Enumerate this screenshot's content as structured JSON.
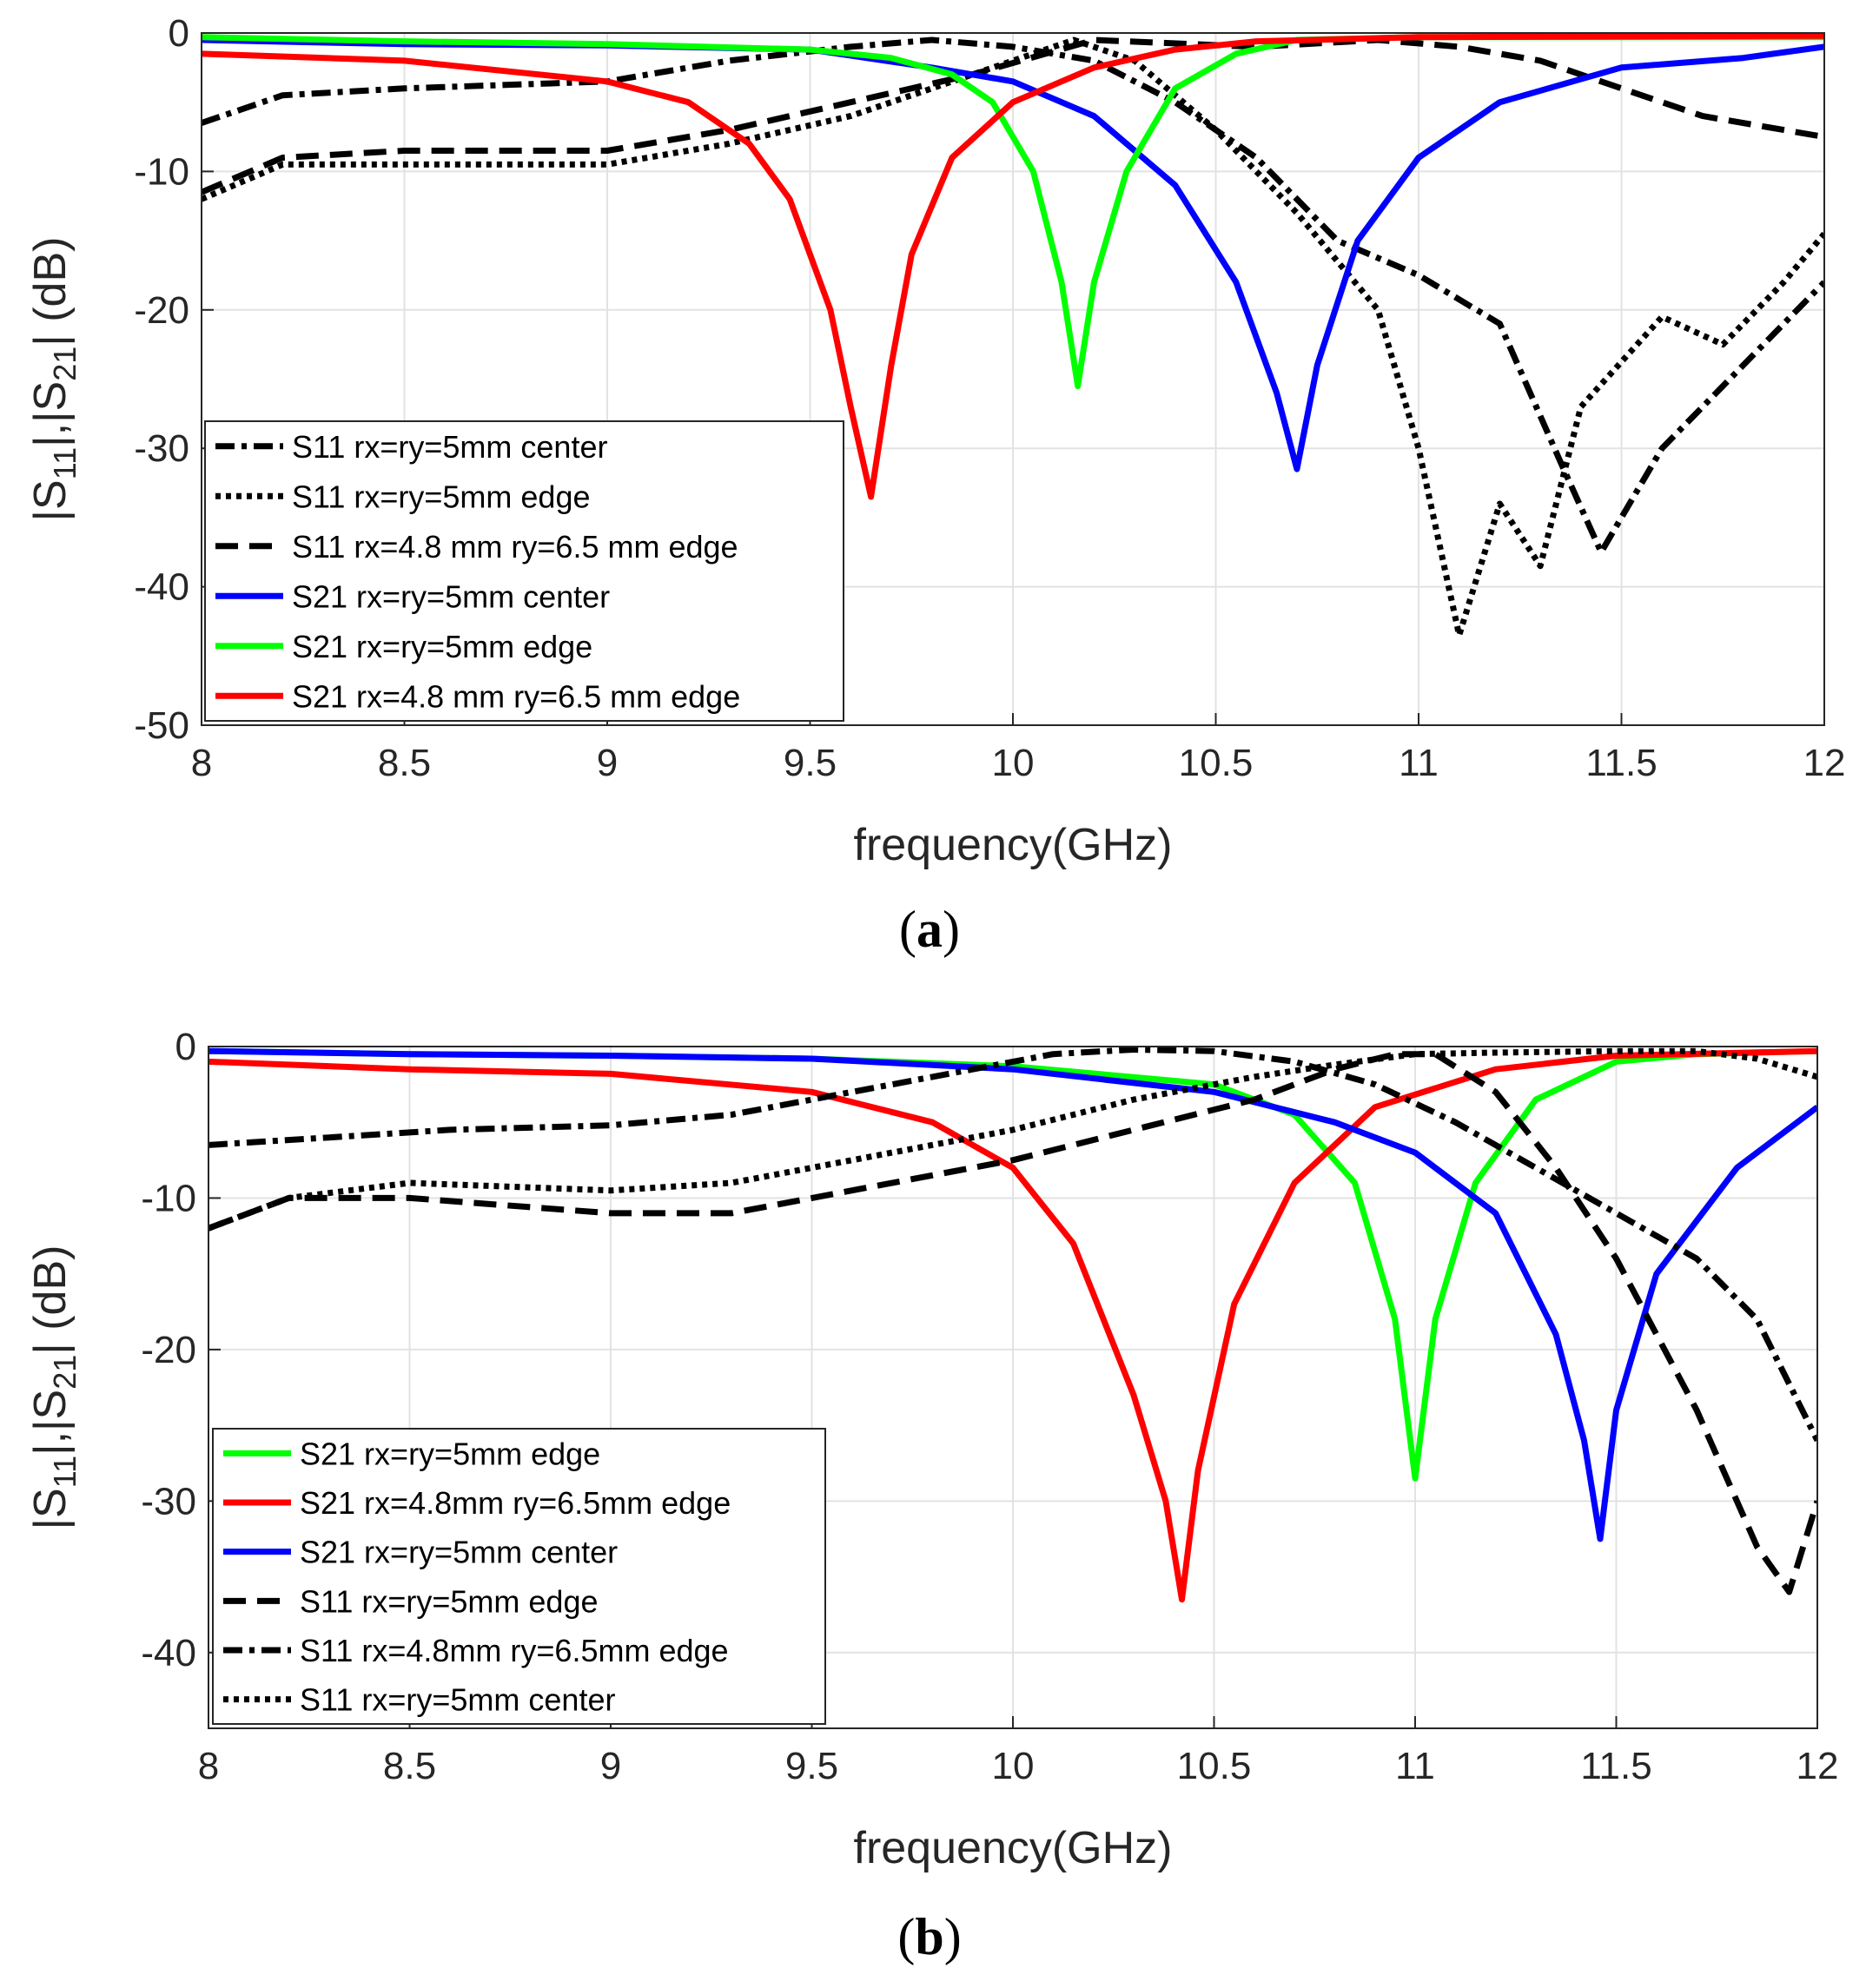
{
  "chart_data": [
    {
      "type": "line",
      "panel_label": "a",
      "title": "",
      "xlabel": "frequency(GHz)",
      "ylabel_parts": {
        "prefix": "|S",
        "sub1": "11",
        "mid": "|,|S",
        "sub2": "21",
        "suffix": "| (dB)"
      },
      "xlim": [
        8,
        12
      ],
      "ylim": [
        -50,
        0
      ],
      "xticks": [
        8,
        8.5,
        9,
        9.5,
        10,
        10.5,
        11,
        11.5,
        12
      ],
      "yticks": [
        0,
        -10,
        -20,
        -30,
        -40,
        -50
      ],
      "xtick_labels": [
        "8",
        "8.5",
        "9",
        "9.5",
        "10",
        "10.5",
        "11",
        "11.5",
        "12"
      ],
      "ytick_labels": [
        "0",
        "-10",
        "-20",
        "-30",
        "-40",
        "-50"
      ],
      "grid": true,
      "legend_position": "lower-left",
      "series": [
        {
          "name": "S11 rx=ry=5mm center",
          "color": "#000000",
          "style": "dashdot",
          "x": [
            8,
            8.2,
            8.5,
            9,
            9.3,
            9.6,
            9.8,
            10,
            10.2,
            10.4,
            10.6,
            10.8,
            11,
            11.2,
            11.35,
            11.45,
            11.6,
            11.8,
            12
          ],
          "y": [
            -6.5,
            -4.5,
            -4,
            -3.5,
            -2,
            -1,
            -0.5,
            -1,
            -2,
            -5,
            -9,
            -15,
            -17.5,
            -21,
            -31,
            -37.5,
            -30,
            -24,
            -18
          ]
        },
        {
          "name": "S11 rx=ry=5mm edge",
          "color": "#000000",
          "style": "dotted",
          "x": [
            8,
            8.2,
            8.5,
            9,
            9.3,
            9.6,
            9.8,
            10,
            10.15,
            10.3,
            10.5,
            10.7,
            10.9,
            11,
            11.1,
            11.2,
            11.3,
            11.4,
            11.6,
            11.75,
            11.9,
            12
          ],
          "y": [
            -12,
            -9.5,
            -9.5,
            -9.5,
            -8,
            -6,
            -4,
            -2,
            -0.5,
            -2,
            -7,
            -13,
            -20,
            -30,
            -43.5,
            -34,
            -38.5,
            -27,
            -20.5,
            -22.5,
            -18,
            -14.5
          ]
        },
        {
          "name": "S11 rx=4.8 mm ry=6.5 mm edge",
          "color": "#000000",
          "style": "dashed",
          "x": [
            8,
            8.2,
            8.5,
            9,
            9.3,
            9.6,
            9.9,
            10.2,
            10.6,
            10.9,
            11.1,
            11.3,
            11.5,
            11.7,
            11.9,
            12
          ],
          "y": [
            -11.5,
            -9,
            -8.5,
            -8.5,
            -7,
            -5,
            -3,
            -0.5,
            -1,
            -0.5,
            -1,
            -2,
            -4,
            -6,
            -7,
            -7.5
          ]
        },
        {
          "name": "S21 rx=ry=5mm center",
          "color": "#0000ff",
          "style": "solid",
          "x": [
            8,
            8.5,
            9,
            9.5,
            9.8,
            10,
            10.2,
            10.4,
            10.55,
            10.65,
            10.7,
            10.75,
            10.85,
            11,
            11.2,
            11.5,
            11.8,
            12
          ],
          "y": [
            -0.5,
            -0.8,
            -0.9,
            -1.2,
            -2.5,
            -3.5,
            -6,
            -11,
            -18,
            -26,
            -31.5,
            -24,
            -15,
            -9,
            -5,
            -2.5,
            -1.8,
            -1
          ]
        },
        {
          "name": "S21 rx=ry=5mm edge",
          "color": "#00ff00",
          "style": "solid",
          "x": [
            8,
            8.5,
            9,
            9.5,
            9.7,
            9.85,
            9.95,
            10.05,
            10.12,
            10.16,
            10.2,
            10.28,
            10.4,
            10.55,
            10.7,
            11,
            12
          ],
          "y": [
            -0.3,
            -0.6,
            -0.8,
            -1.2,
            -1.8,
            -3,
            -5,
            -10,
            -18,
            -25.5,
            -18,
            -10,
            -4,
            -1.5,
            -0.5,
            -0.3,
            -0.3
          ]
        },
        {
          "name": "S21 rx=4.8 mm ry=6.5 mm edge",
          "color": "#ff0000",
          "style": "solid",
          "x": [
            8,
            8.5,
            9,
            9.2,
            9.35,
            9.45,
            9.55,
            9.6,
            9.65,
            9.7,
            9.75,
            9.85,
            10,
            10.2,
            10.4,
            10.6,
            11,
            12
          ],
          "y": [
            -1.5,
            -2,
            -3.5,
            -5,
            -8,
            -12,
            -20,
            -27,
            -33.5,
            -24,
            -16,
            -9,
            -5,
            -2.5,
            -1.2,
            -0.6,
            -0.3,
            -0.2
          ]
        }
      ]
    },
    {
      "type": "line",
      "panel_label": "b",
      "title": "",
      "xlabel": "frequency(GHz)",
      "ylabel_parts": {
        "prefix": "|S",
        "sub1": "11",
        "mid": "|,|S",
        "sub2": "21",
        "suffix": "| (dB)"
      },
      "xlim": [
        8,
        12
      ],
      "ylim": [
        -45,
        0
      ],
      "xticks": [
        8,
        8.5,
        9,
        9.5,
        10,
        10.5,
        11,
        11.5,
        12
      ],
      "yticks": [
        0,
        -10,
        -20,
        -30,
        -40
      ],
      "xtick_labels": [
        "8",
        "8.5",
        "9",
        "9.5",
        "10",
        "10.5",
        "11",
        "11.5",
        "12"
      ],
      "ytick_labels": [
        "0",
        "-10",
        "-20",
        "-30",
        "-40"
      ],
      "grid": true,
      "legend_position": "lower-left",
      "series": [
        {
          "name": "S21 rx=ry=5mm edge",
          "color": "#00ff00",
          "style": "solid",
          "x": [
            8,
            8.5,
            9,
            9.5,
            10,
            10.5,
            10.7,
            10.85,
            10.95,
            11,
            11.05,
            11.15,
            11.3,
            11.5,
            11.7,
            12
          ],
          "y": [
            -0.3,
            -0.5,
            -0.6,
            -0.8,
            -1.3,
            -2.5,
            -4.5,
            -9,
            -18,
            -28.5,
            -18,
            -9,
            -3.5,
            -1,
            -0.5,
            -0.3
          ]
        },
        {
          "name": "S21 rx=4.8mm ry=6.5mm edge",
          "color": "#ff0000",
          "style": "solid",
          "x": [
            8,
            8.5,
            9,
            9.5,
            9.8,
            10,
            10.15,
            10.3,
            10.38,
            10.42,
            10.46,
            10.55,
            10.7,
            10.9,
            11.2,
            11.5,
            12
          ],
          "y": [
            -1,
            -1.5,
            -1.8,
            -3,
            -5,
            -8,
            -13,
            -23,
            -30,
            -36.5,
            -28,
            -17,
            -9,
            -4,
            -1.5,
            -0.6,
            -0.3
          ]
        },
        {
          "name": "S21 rx=ry=5mm center",
          "color": "#0000ff",
          "style": "solid",
          "x": [
            8,
            8.5,
            9,
            9.5,
            10,
            10.5,
            10.8,
            11,
            11.2,
            11.35,
            11.42,
            11.46,
            11.5,
            11.6,
            11.8,
            12
          ],
          "y": [
            -0.3,
            -0.5,
            -0.6,
            -0.8,
            -1.5,
            -3,
            -5,
            -7,
            -11,
            -19,
            -26,
            -32.5,
            -24,
            -15,
            -8,
            -4
          ]
        },
        {
          "name": "S11 rx=ry=5mm edge",
          "color": "#000000",
          "style": "dashed",
          "x": [
            8,
            8.2,
            8.5,
            9,
            9.3,
            9.6,
            10,
            10.3,
            10.6,
            10.8,
            10.95,
            11.05,
            11.2,
            11.35,
            11.5,
            11.7,
            11.85,
            11.93,
            12
          ],
          "y": [
            -12,
            -10,
            -10,
            -11,
            -11,
            -9.5,
            -7.5,
            -5.5,
            -3.5,
            -1.5,
            -0.5,
            -0.5,
            -3,
            -8,
            -14,
            -24,
            -33,
            -36,
            -30
          ]
        },
        {
          "name": "S11 rx=4.8mm ry=6.5mm edge",
          "color": "#000000",
          "style": "dashdot",
          "x": [
            8,
            8.3,
            8.6,
            9,
            9.3,
            9.6,
            9.9,
            10.1,
            10.3,
            10.5,
            10.7,
            10.9,
            11.1,
            11.3,
            11.5,
            11.7,
            11.85,
            12
          ],
          "y": [
            -6.5,
            -6,
            -5.5,
            -5.2,
            -4.5,
            -3,
            -1.5,
            -0.5,
            -0.2,
            -0.3,
            -1,
            -2.5,
            -5,
            -8,
            -11,
            -14,
            -18,
            -26
          ]
        },
        {
          "name": "S11 rx=ry=5mm center",
          "color": "#000000",
          "style": "dotted",
          "x": [
            8,
            8.2,
            8.5,
            9,
            9.3,
            9.6,
            10,
            10.3,
            10.6,
            10.8,
            11,
            11.2,
            11.5,
            11.7,
            11.85,
            12
          ],
          "y": [
            -12,
            -10,
            -9,
            -9.5,
            -9,
            -7.5,
            -5.5,
            -3.5,
            -2,
            -1.2,
            -0.5,
            -0.4,
            -0.3,
            -0.3,
            -0.8,
            -2
          ]
        }
      ]
    }
  ]
}
